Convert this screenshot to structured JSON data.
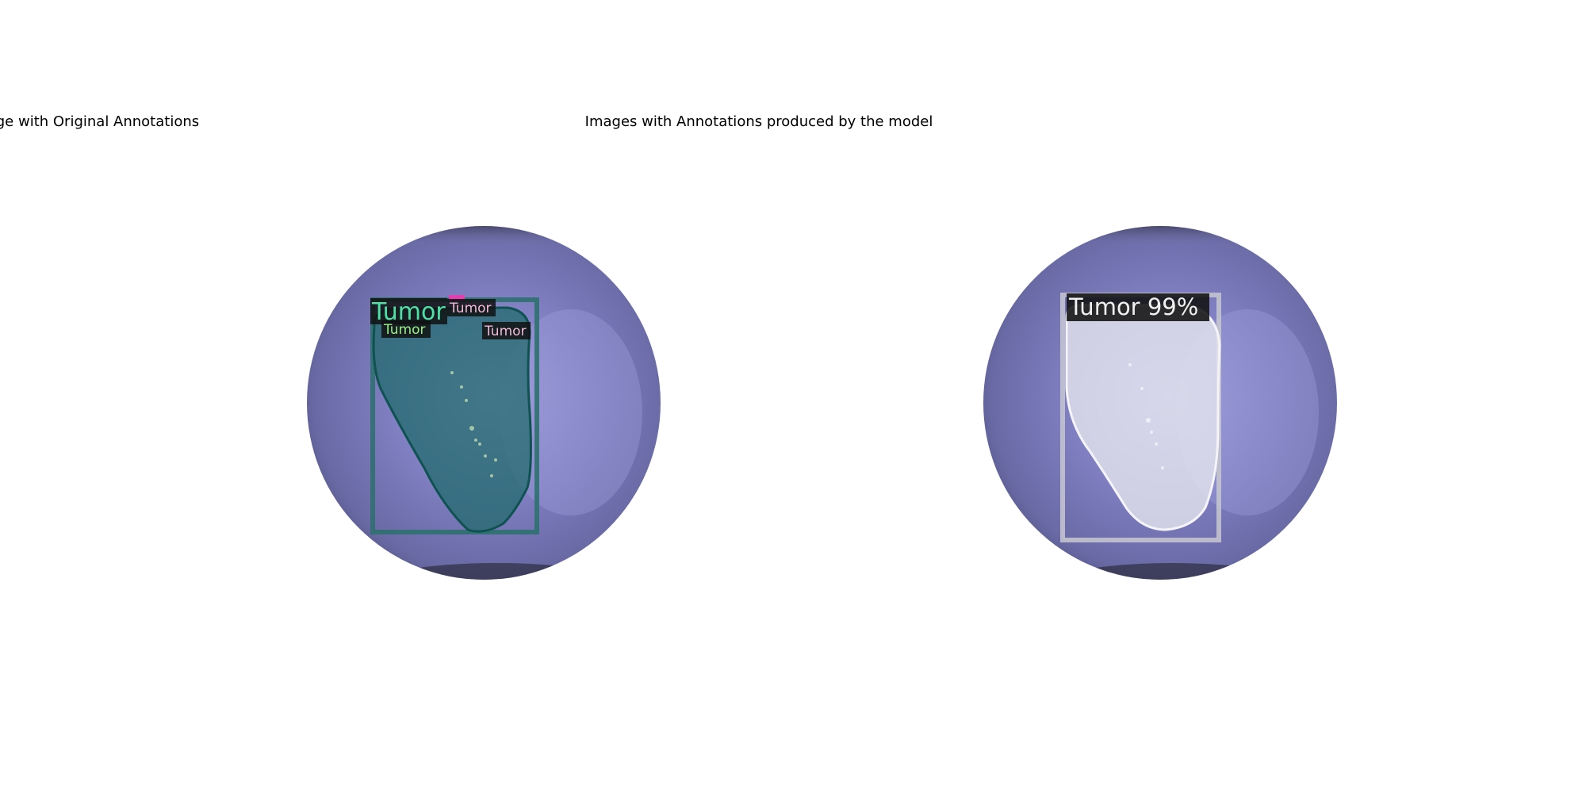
{
  "figure": {
    "left_panel": {
      "title": "Image with Original Annotations",
      "labels": [
        {
          "text": "Tumor",
          "color": "#4fe0a6"
        },
        {
          "text": "Tumor",
          "color": "#9cf08a"
        },
        {
          "text": "Tumor",
          "color": "#f4b8d8"
        },
        {
          "text": "Tumor",
          "color": "#f4b8d8"
        }
      ],
      "mask_color": "#1f6d6d",
      "box_color": "#2f7070"
    },
    "right_panel": {
      "title": "Images with Annotations produced by the model",
      "labels": [
        {
          "text": "Tumor 99%",
          "color": "#f0f0f0"
        }
      ],
      "mask_color": "#e6e6ee",
      "box_color": "#c8c8d2"
    }
  }
}
